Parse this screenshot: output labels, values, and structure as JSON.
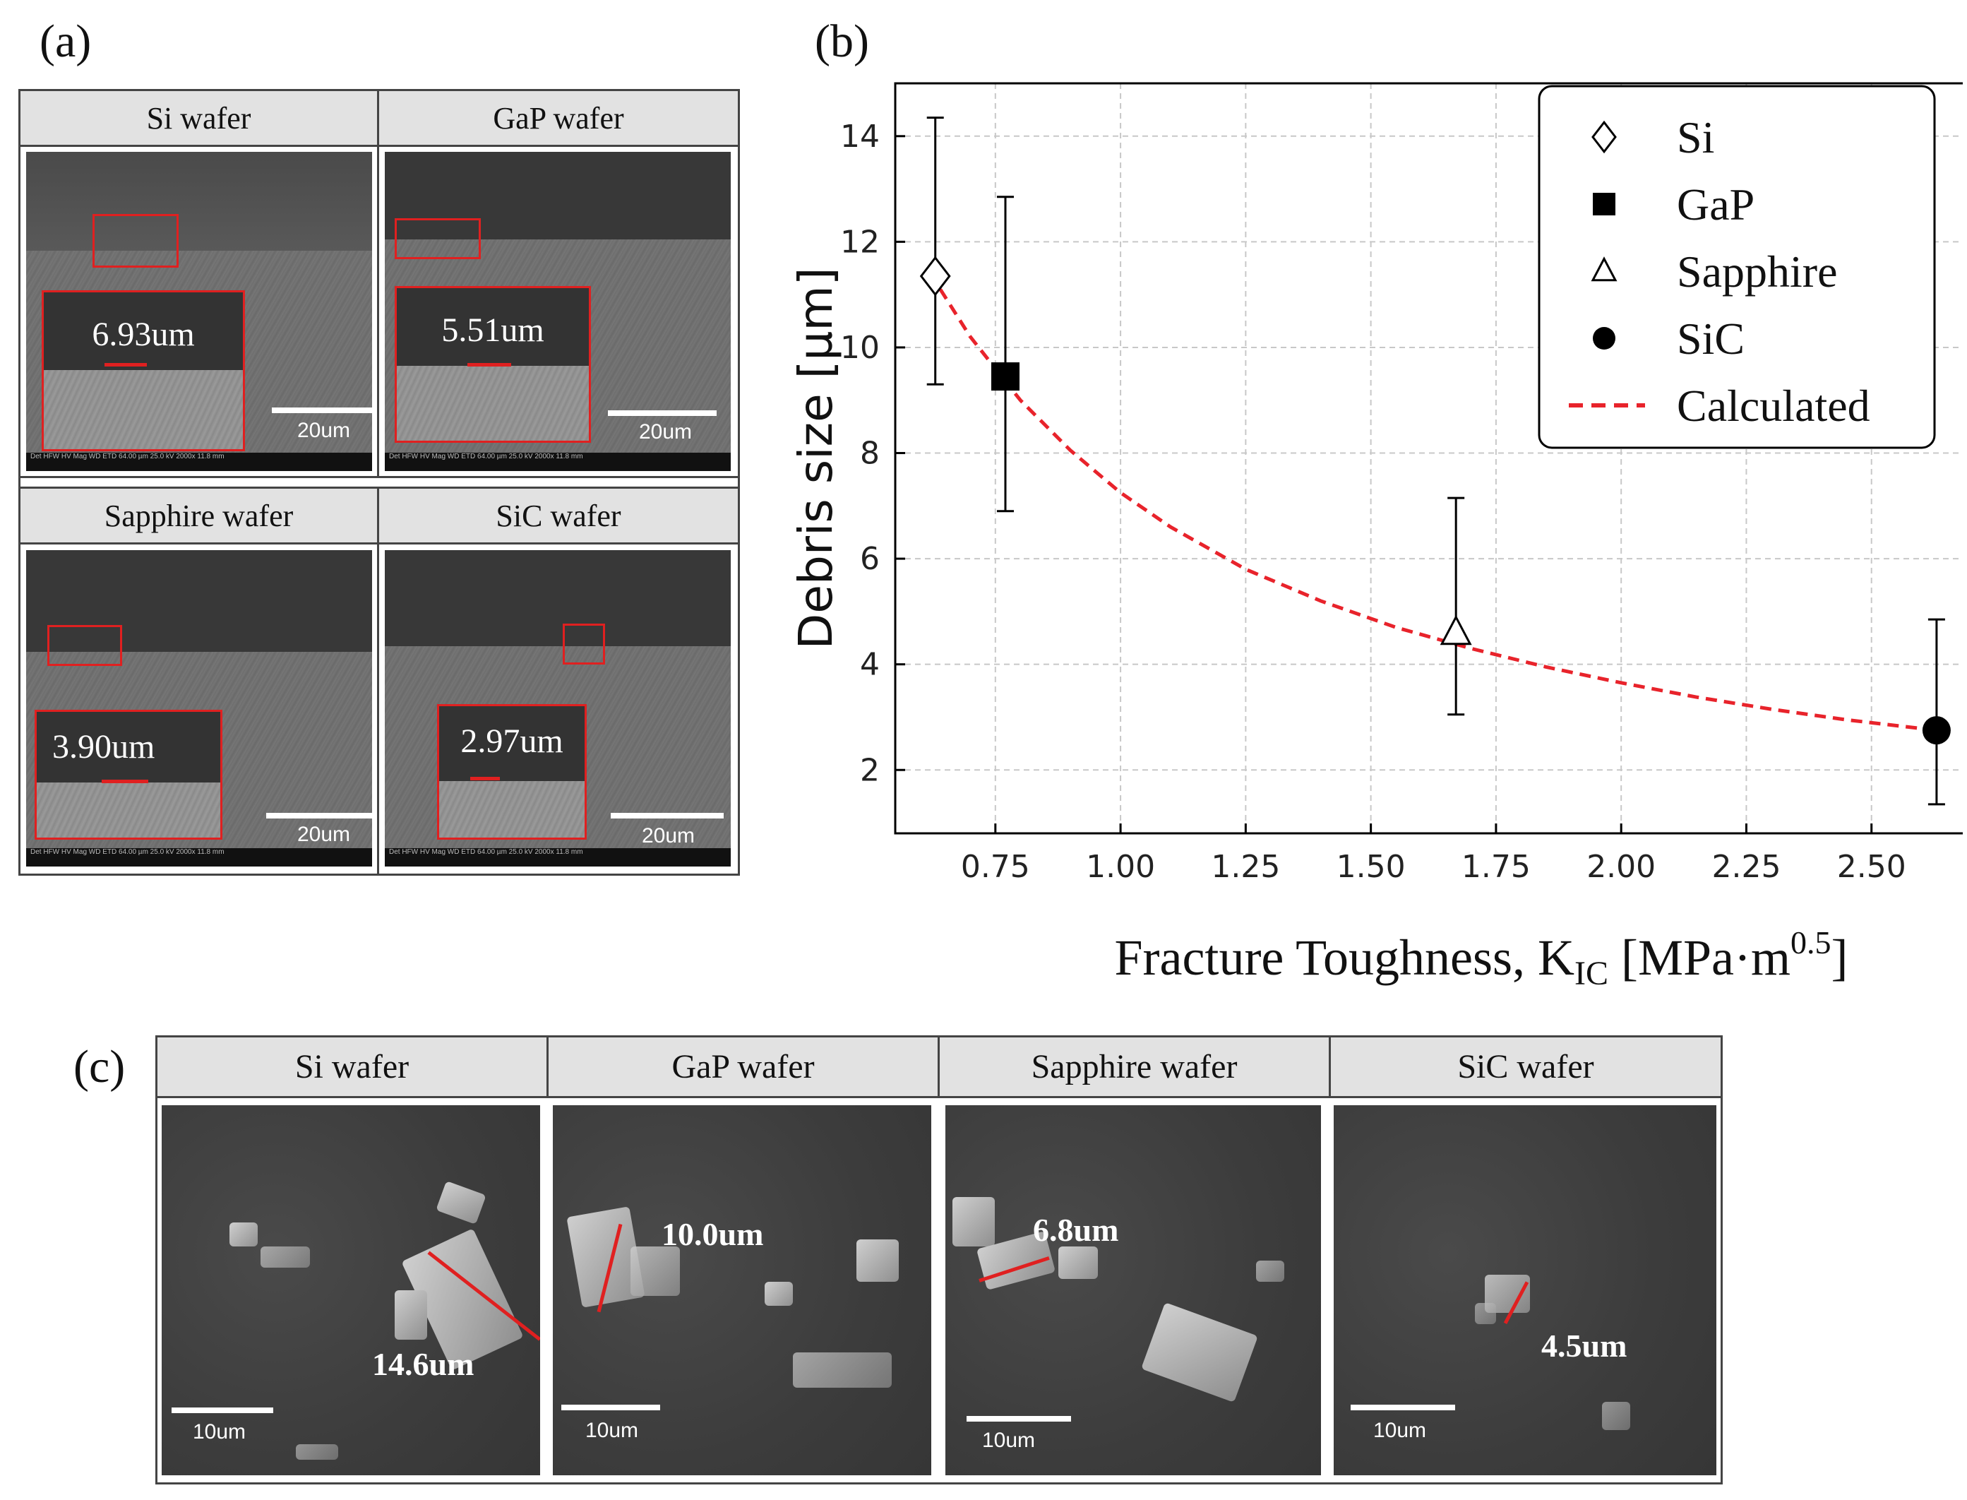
{
  "panel_labels": {
    "a": "(a)",
    "b": "(b)",
    "c": "(c)"
  },
  "panel_a": {
    "cells": [
      {
        "title": "Si wafer",
        "measurement": "6.93um",
        "scale": "20um"
      },
      {
        "title": "GaP wafer",
        "measurement": "5.51um",
        "scale": "20um"
      },
      {
        "title": "Sapphire wafer",
        "measurement": "3.90um",
        "scale": "20um"
      },
      {
        "title": "SiC wafer",
        "measurement": "2.97um",
        "scale": "20um"
      }
    ],
    "infobar": "Det  HFW  HV  Mag  WD   ETD 64.00 µm 25.0 kV 2000x 11.8 mm"
  },
  "chart_data": {
    "type": "scatter",
    "xlabel_main": "Fracture Toughness, K",
    "xlabel_sub": "IC",
    "xlabel_unit_open": " [MPa·m",
    "xlabel_sup": "0.5",
    "xlabel_close": "]",
    "ylabel": "Debris size [µm]",
    "xlim": [
      0.55,
      2.75
    ],
    "ylim": [
      0.8,
      15.0
    ],
    "xticks": [
      0.75,
      1.0,
      1.25,
      1.5,
      1.75,
      2.0,
      2.25,
      2.5
    ],
    "xtick_labels": [
      "0.75",
      "1.00",
      "1.25",
      "1.50",
      "1.75",
      "2.00",
      "2.25",
      "2.50"
    ],
    "yticks": [
      2,
      4,
      6,
      8,
      10,
      12,
      14
    ],
    "ytick_labels": [
      "2",
      "4",
      "6",
      "8",
      "10",
      "12",
      "14"
    ],
    "grid": true,
    "legend_position": "top-right",
    "series": [
      {
        "name": "Si",
        "marker": "diamond-open",
        "x": 0.63,
        "y": 11.35,
        "err_low": 9.3,
        "err_high": 14.35
      },
      {
        "name": "GaP",
        "marker": "square-filled",
        "x": 0.77,
        "y": 9.45,
        "err_low": 6.9,
        "err_high": 12.85
      },
      {
        "name": "Sapphire",
        "marker": "triangle-open",
        "x": 1.67,
        "y": 4.6,
        "err_low": 3.05,
        "err_high": 7.15
      },
      {
        "name": "SiC",
        "marker": "circle-filled",
        "x": 2.63,
        "y": 2.75,
        "err_low": 1.35,
        "err_high": 4.85
      }
    ],
    "calculated_curve": {
      "name": "Calculated",
      "color": "#e8232b",
      "style": "dashed",
      "x": [
        0.64,
        0.7,
        0.8,
        0.9,
        1.0,
        1.1,
        1.25,
        1.4,
        1.55,
        1.7,
        1.85,
        2.0,
        2.15,
        2.3,
        2.45,
        2.63
      ],
      "y": [
        11.1,
        10.2,
        9.0,
        8.05,
        7.25,
        6.6,
        5.8,
        5.2,
        4.7,
        4.3,
        3.95,
        3.65,
        3.38,
        3.15,
        2.95,
        2.75
      ]
    }
  },
  "panel_c": {
    "cells": [
      {
        "title": "Si wafer",
        "measurement": "14.6um",
        "scale": "10um"
      },
      {
        "title": "GaP wafer",
        "measurement": "10.0um",
        "scale": "10um"
      },
      {
        "title": "Sapphire wafer",
        "measurement": "6.8um",
        "scale": "10um"
      },
      {
        "title": "SiC wafer",
        "measurement": "4.5um",
        "scale": "10um"
      }
    ]
  }
}
